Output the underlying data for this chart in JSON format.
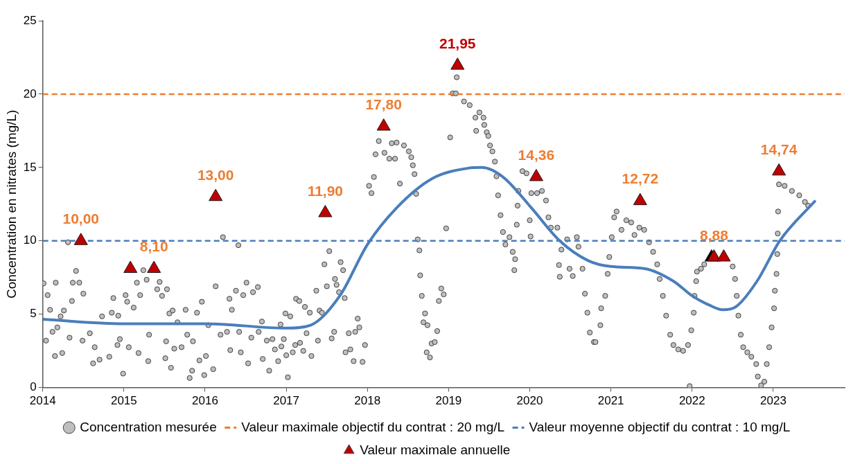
{
  "chart_data": {
    "type": "scatter",
    "ylabel": "Concentration en nitrates (mg/L)",
    "xlim": [
      2014,
      2023.88
    ],
    "xticks": [
      2014,
      2015,
      2016,
      2017,
      2018,
      2019,
      2020,
      2021,
      2022,
      2023
    ],
    "ylim": [
      0,
      25
    ],
    "yticks": [
      0,
      5,
      10,
      15,
      20,
      25
    ],
    "grid": false,
    "legend": "bottom",
    "series": [
      {
        "name": "Concentration mesurée",
        "marker": "circle",
        "color": "#bfbfbf",
        "x": [
          2014.01,
          2014.06,
          2014.09,
          2014.04,
          2014.12,
          2014.15,
          2014.16,
          2014.18,
          2014.22,
          2014.24,
          2014.26,
          2014.31,
          2014.33,
          2014.36,
          2014.37,
          2014.41,
          2014.45,
          2014.49,
          2014.5,
          2014.58,
          2014.62,
          2014.64,
          2014.7,
          2014.73,
          2014.82,
          2014.85,
          2014.87,
          2014.92,
          2014.93,
          2014.99,
          2014.95,
          2015.02,
          2015.04,
          2015.06,
          2015.12,
          2015.16,
          2015.18,
          2015.2,
          2015.24,
          2015.28,
          2015.3,
          2015.31,
          2015.41,
          2015.44,
          2015.47,
          2015.51,
          2015.53,
          2015.52,
          2015.56,
          2015.58,
          2015.6,
          2015.62,
          2015.66,
          2015.71,
          2015.76,
          2015.78,
          2015.81,
          2015.84,
          2015.85,
          2015.9,
          2015.93,
          2015.96,
          2015.99,
          2016.01,
          2016.04,
          2016.1,
          2016.13,
          2016.19,
          2016.22,
          2016.27,
          2016.3,
          2016.31,
          2016.33,
          2016.38,
          2016.41,
          2016.42,
          2016.44,
          2016.47,
          2016.51,
          2016.53,
          2016.57,
          2016.59,
          2016.65,
          2016.66,
          2016.7,
          2016.71,
          2016.76,
          2016.79,
          2016.83,
          2016.86,
          2016.9,
          2016.93,
          2016.94,
          2016.97,
          2016.99,
          2017.0,
          2017.02,
          2017.05,
          2017.08,
          2017.11,
          2017.12,
          2017.16,
          2017.17,
          2017.21,
          2017.23,
          2017.25,
          2017.29,
          2017.31,
          2017.37,
          2017.39,
          2017.41,
          2017.44,
          2017.47,
          2017.5,
          2017.53,
          2017.56,
          2017.59,
          2017.6,
          2017.62,
          2017.65,
          2017.67,
          2017.7,
          2017.72,
          2017.73,
          2017.77,
          2017.79,
          2017.83,
          2017.85,
          2017.88,
          2017.9,
          2017.94,
          2017.97,
          2018.02,
          2018.05,
          2018.08,
          2018.1,
          2018.14,
          2018.21,
          2018.27,
          2018.3,
          2018.34,
          2018.36,
          2018.4,
          2018.45,
          2018.51,
          2018.54,
          2018.56,
          2018.58,
          2018.6,
          2018.62,
          2018.64,
          2018.65,
          2018.67,
          2018.69,
          2018.71,
          2018.74,
          2018.73,
          2018.77,
          2018.79,
          2018.83,
          2018.86,
          2018.88,
          2018.91,
          2018.94,
          2018.97,
          2019.02,
          2019.05,
          2019.09,
          2019.1,
          2019.19,
          2019.26,
          2019.33,
          2019.34,
          2019.38,
          2019.43,
          2019.44,
          2019.47,
          2019.49,
          2019.51,
          2019.54,
          2019.57,
          2019.59,
          2019.61,
          2019.64,
          2019.67,
          2019.7,
          2019.75,
          2019.79,
          2019.81,
          2019.82,
          2019.84,
          2019.85,
          2019.86,
          2019.91,
          2019.96,
          2020.0,
          2020.01,
          2020.02,
          2020.09,
          2020.15,
          2020.2,
          2020.23,
          2020.26,
          2020.34,
          2020.36,
          2020.37,
          2020.39,
          2020.46,
          2020.49,
          2020.53,
          2020.58,
          2020.6,
          2020.65,
          2020.68,
          2020.71,
          2020.74,
          2020.79,
          2020.81,
          2020.87,
          2020.88,
          2020.93,
          2020.96,
          2020.98,
          2021.01,
          2021.04,
          2021.07,
          2021.13,
          2021.19,
          2021.25,
          2021.29,
          2021.35,
          2021.41,
          2021.47,
          2021.52,
          2021.57,
          2021.6,
          2021.64,
          2021.68,
          2021.73,
          2021.77,
          2021.83,
          2021.89,
          2021.95,
          2021.99,
          2022.02,
          2022.03,
          2021.97,
          2022.05,
          2022.06,
          2022.11,
          2022.15,
          2022.5,
          2022.53,
          2022.55,
          2022.57,
          2022.6,
          2022.63,
          2022.68,
          2022.73,
          2022.79,
          2022.81,
          2022.85,
          2022.89,
          2022.92,
          2022.95,
          2022.98,
          2023.01,
          2023.02,
          2023.04,
          2023.05,
          2023.055,
          2023.06,
          2023.07,
          2023.14,
          2023.23,
          2023.32,
          2023.39,
          2023.43
        ],
        "values": [
          7.1,
          6.3,
          5.3,
          3.2,
          3.8,
          2.15,
          7.15,
          4.1,
          4.85,
          2.35,
          5.25,
          9.9,
          3.4,
          5.9,
          7.15,
          7.95,
          7.15,
          3.2,
          6.4,
          3.7,
          1.65,
          2.75,
          1.9,
          4.85,
          2.1,
          5.1,
          6.1,
          2.9,
          4.9,
          0.95,
          3.3,
          6.3,
          5.85,
          2.75,
          5.45,
          7.15,
          2.35,
          6.3,
          8.0,
          7.35,
          1.8,
          3.6,
          6.7,
          7.2,
          6.25,
          2.0,
          6.7,
          3.15,
          5.05,
          1.35,
          5.25,
          2.65,
          4.45,
          2.75,
          5.3,
          3.6,
          0.65,
          1.15,
          3.15,
          5.1,
          1.85,
          5.85,
          0.85,
          2.15,
          4.25,
          1.25,
          6.9,
          3.6,
          10.25,
          3.8,
          6.05,
          2.55,
          5.3,
          6.6,
          9.7,
          3.8,
          2.4,
          6.3,
          7.15,
          1.65,
          3.4,
          6.5,
          6.85,
          3.8,
          4.5,
          1.95,
          3.2,
          1.15,
          3.3,
          2.6,
          1.8,
          4.3,
          2.8,
          3.3,
          5.05,
          2.2,
          0.7,
          4.85,
          2.4,
          2.9,
          6.05,
          5.9,
          3.05,
          2.5,
          5.5,
          3.7,
          5.1,
          2.15,
          6.6,
          3.2,
          5.25,
          5.1,
          8.4,
          6.9,
          9.3,
          3.35,
          3.8,
          7.4,
          7.0,
          6.5,
          8.55,
          8.0,
          6.1,
          2.4,
          3.7,
          2.6,
          1.8,
          3.8,
          4.7,
          4.1,
          1.75,
          2.9,
          13.75,
          13.25,
          14.35,
          15.9,
          16.8,
          16.0,
          15.6,
          16.65,
          15.6,
          16.7,
          13.9,
          16.5,
          16.1,
          15.7,
          15.15,
          14.55,
          13.2,
          10.1,
          9.35,
          7.65,
          6.25,
          4.45,
          5.05,
          4.25,
          2.4,
          2.05,
          3.0,
          3.1,
          3.85,
          5.9,
          6.75,
          6.35,
          10.85,
          17.05,
          20.05,
          20.05,
          21.15,
          19.5,
          19.25,
          18.4,
          17.5,
          18.75,
          18.4,
          17.9,
          17.4,
          17.15,
          16.5,
          16.1,
          15.4,
          14.4,
          13.1,
          11.75,
          10.6,
          9.75,
          10.25,
          9.25,
          8.0,
          8.75,
          11.1,
          12.4,
          13.4,
          14.75,
          14.6,
          11.4,
          10.3,
          13.25,
          13.25,
          13.4,
          12.75,
          11.6,
          10.9,
          10.9,
          8.35,
          7.55,
          9.4,
          10.1,
          8.1,
          7.6,
          10.25,
          9.6,
          8.1,
          6.4,
          5.1,
          3.75,
          3.1,
          3.1,
          4.25,
          5.4,
          6.25,
          7.75,
          8.9,
          10.25,
          11.6,
          12.0,
          10.75,
          11.4,
          11.25,
          10.4,
          10.9,
          10.75,
          9.9,
          9.25,
          8.4,
          7.4,
          6.25,
          4.9,
          3.6,
          2.9,
          2.6,
          2.5,
          2.9,
          3.9,
          5.1,
          6.25,
          0.1,
          7.25,
          7.9,
          8.1,
          8.4,
          8.25,
          7.4,
          6.25,
          4.9,
          3.6,
          2.75,
          2.4,
          2.1,
          1.6,
          0.75,
          0.15,
          0.4,
          1.6,
          2.75,
          4.1,
          5.4,
          6.6,
          7.75,
          9.1,
          10.5,
          12.0,
          13.85,
          13.75,
          13.4,
          13.1,
          12.65,
          12.4
        ]
      },
      {
        "type": "line",
        "marker": "none",
        "color": "#4a7ebb",
        "x": [
          2014,
          2015,
          2016,
          2017,
          2017.3,
          2017.66,
          2018,
          2018.36,
          2018.8,
          2019.24,
          2019.41,
          2019.67,
          2020.02,
          2020.37,
          2020.72,
          2021.0,
          2021.42,
          2021.77,
          2022.0,
          2022.2,
          2022.38,
          2022.55,
          2022.8,
          2023.08,
          2023.52
        ],
        "values": [
          4.65,
          4.35,
          4.35,
          4.05,
          4.25,
          6.25,
          9.75,
          12.25,
          14.25,
          14.95,
          15.0,
          14.35,
          12.25,
          10.0,
          8.65,
          8.25,
          8.1,
          7.25,
          6.25,
          5.65,
          5.3,
          5.55,
          7.25,
          10.0,
          12.75
        ]
      },
      {
        "name": "Valeur maximale objectif du contrat : 20 mg/L",
        "type": "line",
        "marker": "none",
        "line_style": "dashed",
        "color": "#ed7d31",
        "x": [
          2014,
          2023.88
        ],
        "values": [
          20,
          20
        ]
      },
      {
        "name": "Valeur moyenne objectif du contrat : 10 mg/L",
        "type": "line",
        "marker": "none",
        "line_style": "dashed",
        "color": "#4a7ebb",
        "x": [
          2014,
          2023.88
        ],
        "values": [
          10,
          10
        ]
      },
      {
        "name": "Valeur maximale annuelle",
        "marker": "triangle",
        "color": "#c00000",
        "colors": [
          "#c00000",
          "#c00000",
          "#c00000",
          "#c00000",
          "#c00000",
          "#c00000",
          "#c00000",
          "#c00000",
          "#c00000",
          "#000000",
          "#c00000",
          "#c00000",
          "#c00000"
        ],
        "x": [
          2014.47,
          2015.08,
          2015.37,
          2016.13,
          2017.48,
          2018.2,
          2019.11,
          2020.08,
          2021.36,
          2022.24,
          2022.27,
          2022.39,
          2023.07
        ],
        "values": [
          10.0,
          8.1,
          8.1,
          13.0,
          11.9,
          17.8,
          21.95,
          14.36,
          12.72,
          8.88,
          8.88,
          8.88,
          14.74
        ],
        "value_labels": [
          "10,00",
          null,
          "8,10",
          "13,00",
          "11,90",
          "17,80",
          "21,95",
          "14,36",
          "12,72",
          null,
          "8,88",
          null,
          "14,74"
        ]
      }
    ]
  }
}
